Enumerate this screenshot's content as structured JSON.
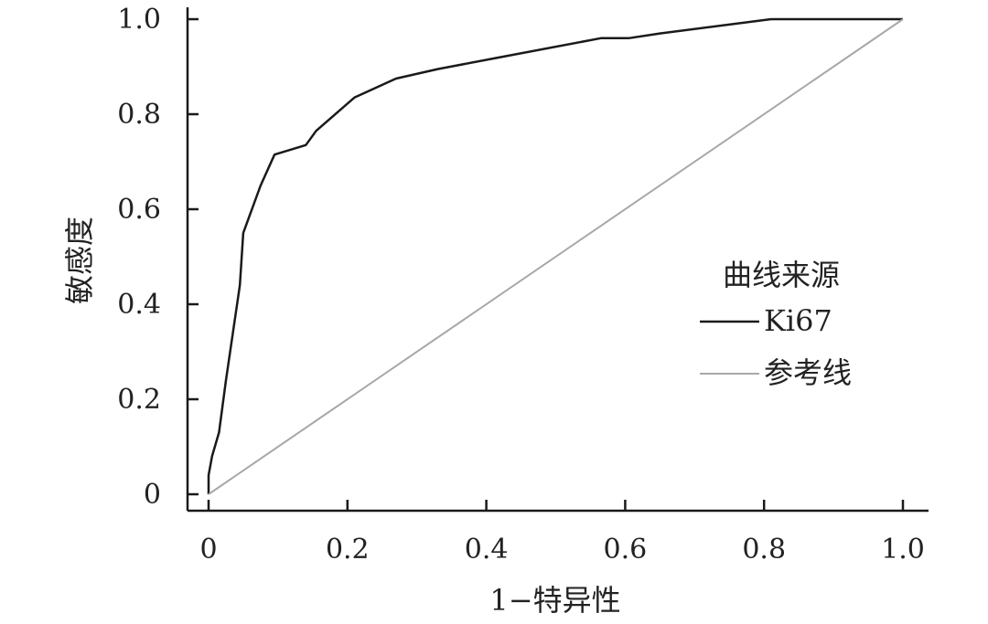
{
  "chart_data": {
    "type": "line",
    "title": "",
    "xlabel": "1−特异性",
    "ylabel": "敏感度",
    "xlim": [
      0,
      1
    ],
    "ylim": [
      0,
      1
    ],
    "x_ticks": [
      0,
      0.2,
      0.4,
      0.6,
      0.8,
      1.0
    ],
    "x_tick_labels": [
      "0",
      "0.2",
      "0.4",
      "0.6",
      "0.8",
      "1.0"
    ],
    "y_ticks": [
      0,
      0.2,
      0.4,
      0.6,
      0.8,
      1.0
    ],
    "y_tick_labels": [
      "0",
      "0.2",
      "0.4",
      "0.6",
      "0.8",
      "1.0"
    ],
    "grid": false,
    "legend": {
      "title": "曲线来源",
      "placement": "center-right"
    },
    "series": [
      {
        "name": "Ki67",
        "color": "#1a1a1a",
        "x": [
          0,
          0,
          0.005,
          0.015,
          0.025,
          0.035,
          0.045,
          0.05,
          0.06,
          0.075,
          0.095,
          0.14,
          0.155,
          0.21,
          0.27,
          0.33,
          0.42,
          0.565,
          0.605,
          0.65,
          0.81,
          1.0
        ],
        "y": [
          0,
          0.04,
          0.08,
          0.13,
          0.24,
          0.34,
          0.44,
          0.55,
          0.59,
          0.65,
          0.715,
          0.735,
          0.765,
          0.835,
          0.875,
          0.895,
          0.92,
          0.96,
          0.96,
          0.97,
          1.0,
          1.0
        ]
      },
      {
        "name": "参考线",
        "color": "#a8a8a8",
        "x": [
          0,
          1
        ],
        "y": [
          0,
          1
        ]
      }
    ]
  }
}
